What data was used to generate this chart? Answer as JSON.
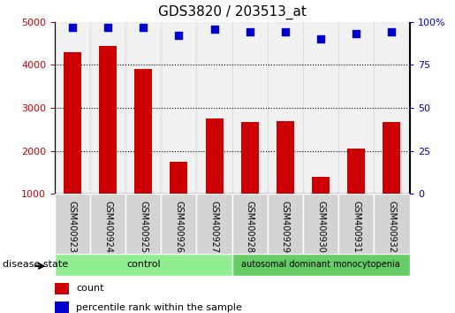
{
  "title": "GDS3820 / 203513_at",
  "samples": [
    "GSM400923",
    "GSM400924",
    "GSM400925",
    "GSM400926",
    "GSM400927",
    "GSM400928",
    "GSM400929",
    "GSM400930",
    "GSM400931",
    "GSM400932"
  ],
  "counts": [
    4300,
    4450,
    3900,
    1750,
    2750,
    2680,
    2700,
    1400,
    2050,
    2680
  ],
  "percentiles": [
    97,
    97,
    97,
    92,
    96,
    94,
    94,
    90,
    93,
    94
  ],
  "ylim_left": [
    1000,
    5000
  ],
  "ylim_right": [
    0,
    100
  ],
  "yticks_left": [
    1000,
    2000,
    3000,
    4000,
    5000
  ],
  "yticks_right": [
    0,
    25,
    50,
    75,
    100
  ],
  "bar_color": "#cc0000",
  "dot_color": "#0000cc",
  "control_color": "#90ee90",
  "disease_color": "#66cc66",
  "label_bg_color": "#d3d3d3",
  "control_label": "control",
  "disease_label": "autosomal dominant monocytopenia",
  "disease_state_label": "disease state",
  "legend_count": "count",
  "legend_percentile": "percentile rank within the sample",
  "n_control": 5,
  "n_disease": 5,
  "percentile_scale": 50.0
}
